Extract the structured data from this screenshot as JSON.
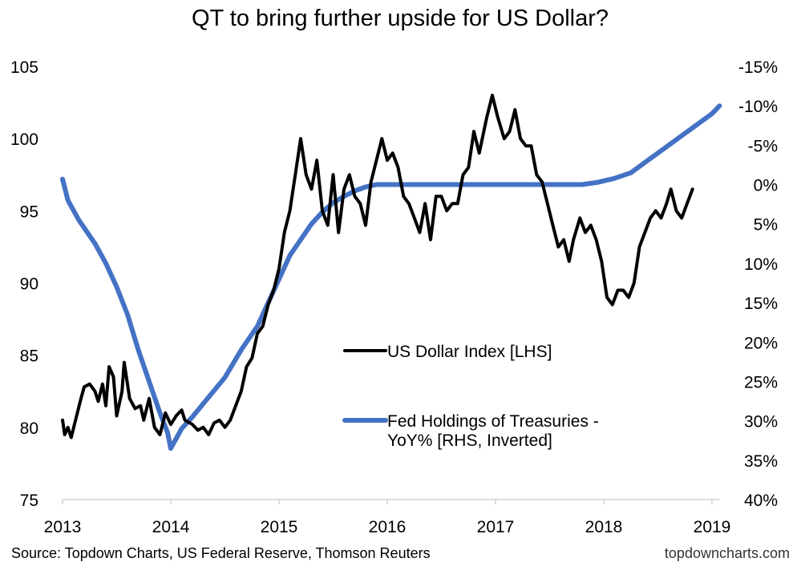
{
  "chart_data": {
    "type": "line",
    "title": "QT to bring further upside for US Dollar?",
    "source": "Source: Topdown Charts, US Federal Reserve, Thomson Reuters",
    "watermark": "topdowncharts.com",
    "x_ticks": [
      "2013",
      "2014",
      "2015",
      "2016",
      "2017",
      "2018",
      "2019"
    ],
    "xlim": [
      2013,
      2019.07
    ],
    "left_axis": {
      "ylim": [
        75,
        105
      ],
      "ticks": [
        "75",
        "80",
        "85",
        "90",
        "95",
        "100",
        "105"
      ]
    },
    "right_axis": {
      "ylim": [
        -15,
        40
      ],
      "inverted": true,
      "ticks": [
        "-15%",
        "-10%",
        "-5%",
        "0%",
        "5%",
        "10%",
        "15%",
        "20%",
        "25%",
        "30%",
        "35%",
        "40%"
      ]
    },
    "grid": false,
    "legend_placement": "center-right",
    "series": [
      {
        "name": "US Dollar Index [LHS]",
        "axis": "left",
        "color": "#000000",
        "x": [
          2013.0,
          2013.02,
          2013.05,
          2013.08,
          2013.12,
          2013.17,
          2013.2,
          2013.25,
          2013.3,
          2013.33,
          2013.37,
          2013.4,
          2013.43,
          2013.47,
          2013.5,
          2013.55,
          2013.57,
          2013.62,
          2013.67,
          2013.72,
          2013.75,
          2013.8,
          2013.85,
          2013.9,
          2013.95,
          2014.0,
          2014.05,
          2014.1,
          2014.13,
          2014.2,
          2014.25,
          2014.3,
          2014.35,
          2014.4,
          2014.45,
          2014.5,
          2014.55,
          2014.6,
          2014.65,
          2014.7,
          2014.75,
          2014.8,
          2014.85,
          2014.9,
          2014.95,
          2015.0,
          2015.05,
          2015.1,
          2015.15,
          2015.2,
          2015.25,
          2015.3,
          2015.35,
          2015.4,
          2015.45,
          2015.5,
          2015.55,
          2015.6,
          2015.65,
          2015.7,
          2015.75,
          2015.8,
          2015.85,
          2015.9,
          2015.95,
          2016.0,
          2016.05,
          2016.1,
          2016.15,
          2016.2,
          2016.25,
          2016.3,
          2016.35,
          2016.4,
          2016.45,
          2016.5,
          2016.55,
          2016.6,
          2016.65,
          2016.7,
          2016.75,
          2016.8,
          2016.85,
          2016.92,
          2016.97,
          2017.02,
          2017.08,
          2017.13,
          2017.18,
          2017.23,
          2017.28,
          2017.33,
          2017.38,
          2017.43,
          2017.48,
          2017.53,
          2017.58,
          2017.63,
          2017.68,
          2017.72,
          2017.78,
          2017.83,
          2017.88,
          2017.93,
          2017.98,
          2018.03,
          2018.08,
          2018.13,
          2018.18,
          2018.23,
          2018.28,
          2018.33,
          2018.38,
          2018.43,
          2018.48,
          2018.53,
          2018.58,
          2018.62,
          2018.67,
          2018.72,
          2018.77,
          2018.82
        ],
        "values": [
          80.5,
          79.5,
          80,
          79.3,
          80.5,
          82,
          82.8,
          83,
          82.5,
          81.8,
          83,
          81.5,
          84.2,
          83.5,
          80.8,
          82.5,
          84.5,
          82,
          81.3,
          81.5,
          80.5,
          82,
          80,
          79.5,
          81,
          80.2,
          80.8,
          81.2,
          80.5,
          80.2,
          79.8,
          80,
          79.5,
          80.3,
          80.5,
          80,
          80.5,
          81.5,
          82.5,
          84.2,
          84.8,
          86.5,
          87,
          88.5,
          89.5,
          91,
          93.5,
          95,
          97.5,
          100,
          97.5,
          96.5,
          98.5,
          95,
          94,
          97.5,
          93.5,
          96.5,
          97.5,
          96,
          95.5,
          94,
          97,
          98.5,
          100,
          98.5,
          99,
          98,
          96,
          95.5,
          94.5,
          93.5,
          95.5,
          93,
          96,
          96,
          95,
          95.5,
          95.5,
          97.5,
          98,
          100.5,
          99,
          101.5,
          103,
          101.5,
          100,
          100.5,
          102,
          100,
          99.5,
          99.5,
          97.5,
          97,
          95.5,
          94,
          92.5,
          93,
          91.5,
          93,
          94.5,
          93.5,
          94,
          93,
          91.5,
          89,
          88.5,
          89.5,
          89.5,
          89,
          90,
          92.5,
          93.5,
          94.5,
          95,
          94.5,
          95.5,
          96.5,
          95,
          94.5,
          95.5,
          96.5
        ]
      },
      {
        "name": "Fed Holdings of Treasuries - YoY% [RHS, Inverted]",
        "axis": "right",
        "color": "#4472C4",
        "x": [
          2013.0,
          2013.05,
          2013.15,
          2013.3,
          2013.4,
          2013.5,
          2013.6,
          2013.7,
          2013.8,
          2013.9,
          2013.97,
          2014.0,
          2014.1,
          2014.2,
          2014.35,
          2014.5,
          2014.65,
          2014.8,
          2014.9,
          2015.0,
          2015.1,
          2015.2,
          2015.3,
          2015.4,
          2015.5,
          2015.6,
          2015.7,
          2015.8,
          2015.9,
          2016.5,
          2017.0,
          2017.5,
          2017.8,
          2017.95,
          2018.1,
          2018.25,
          2018.4,
          2018.55,
          2018.7,
          2018.85,
          2019.0,
          2019.07
        ],
        "values": [
          -0.7,
          2,
          4.5,
          7.5,
          10,
          13,
          16.5,
          21,
          25,
          29,
          31.5,
          33.5,
          31,
          29.5,
          27,
          24.5,
          21,
          18,
          15,
          12,
          9,
          7,
          5,
          3.5,
          2.3,
          1.5,
          0.8,
          0.3,
          0,
          0,
          0,
          0,
          0,
          -0.3,
          -0.8,
          -1.5,
          -3,
          -4.5,
          -6,
          -7.5,
          -9,
          -10
        ]
      }
    ]
  }
}
